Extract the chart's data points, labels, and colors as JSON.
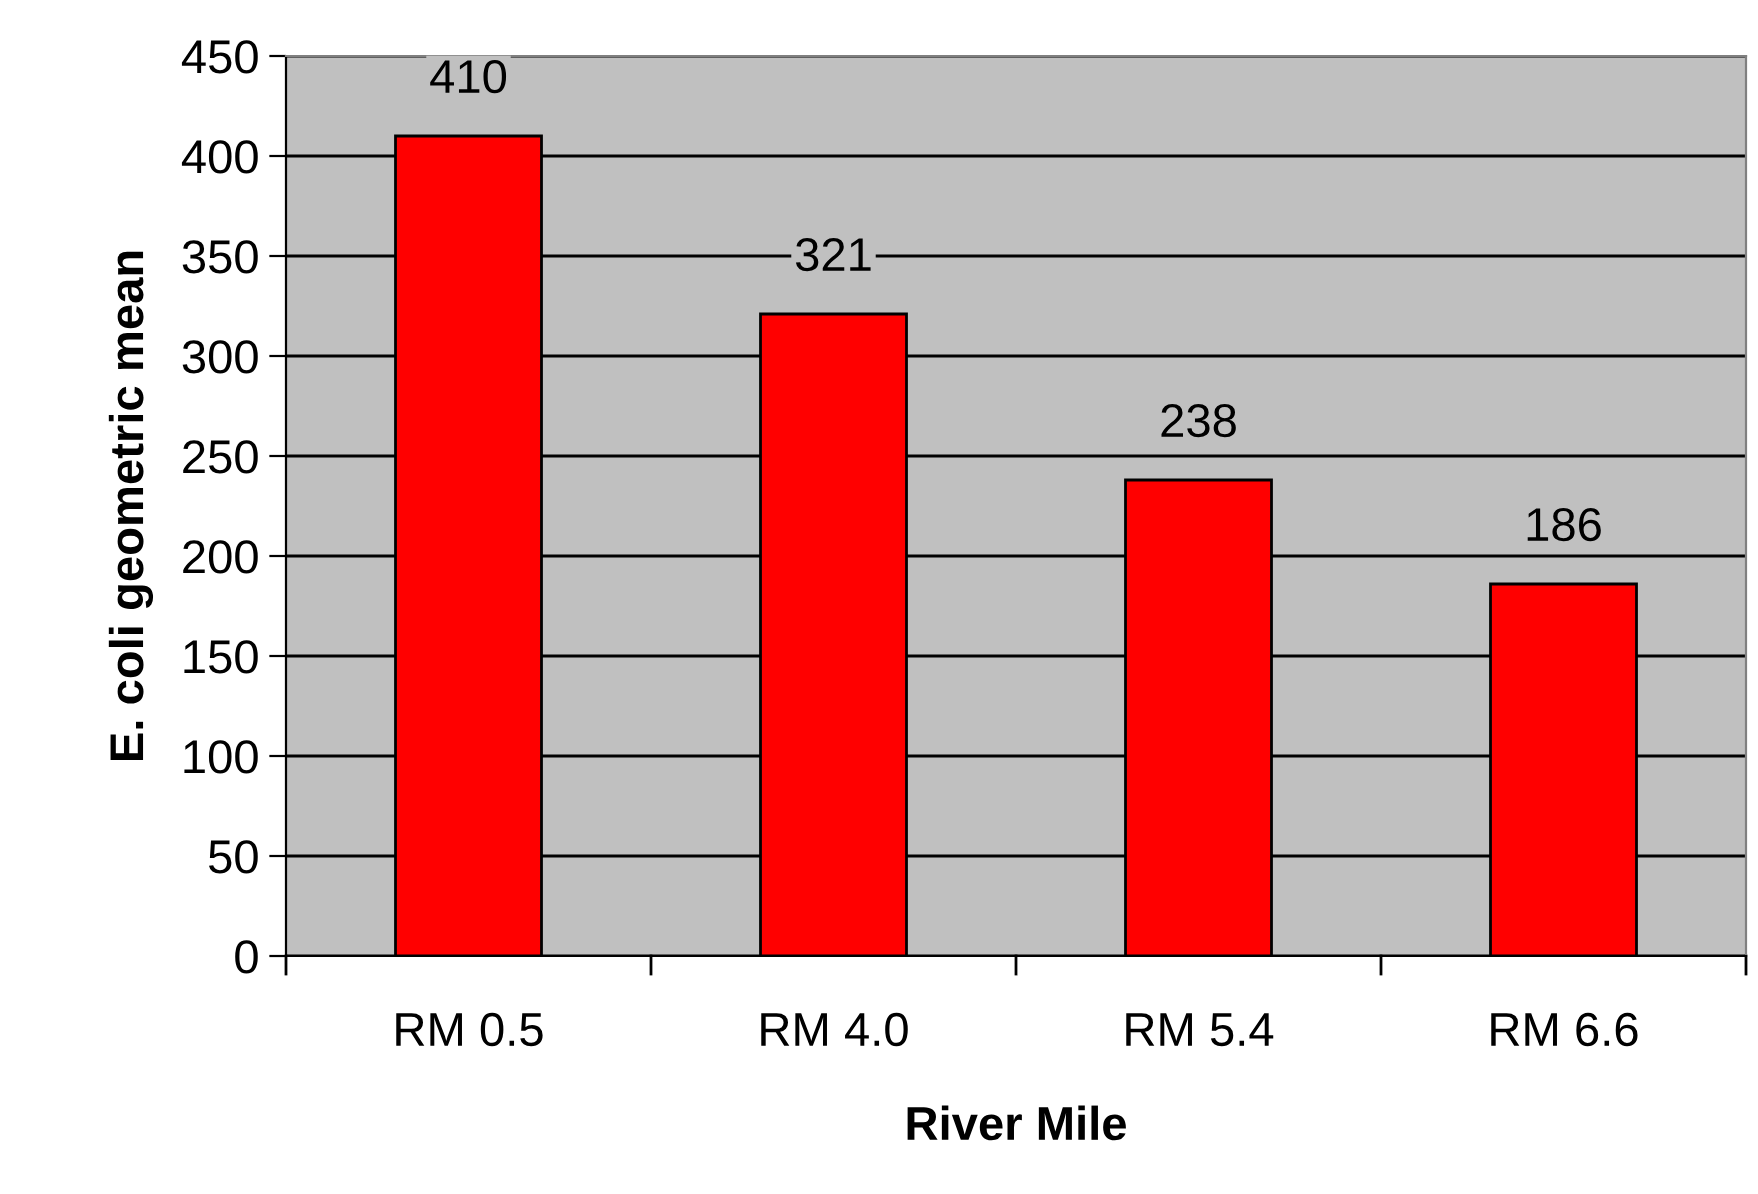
{
  "chart_data": {
    "type": "bar",
    "xlabel": "River Mile",
    "ylabel": "E. coli geometric mean",
    "categories": [
      "RM 0.5",
      "RM 4.0",
      "RM 5.4",
      "RM 6.6"
    ],
    "values": [
      410,
      321,
      238,
      186
    ],
    "color": "#ff0000",
    "ylim": [
      0,
      450
    ],
    "yticks": [
      0,
      50,
      100,
      150,
      200,
      250,
      300,
      350,
      400,
      450
    ],
    "grid": "y",
    "data_labels": true
  }
}
